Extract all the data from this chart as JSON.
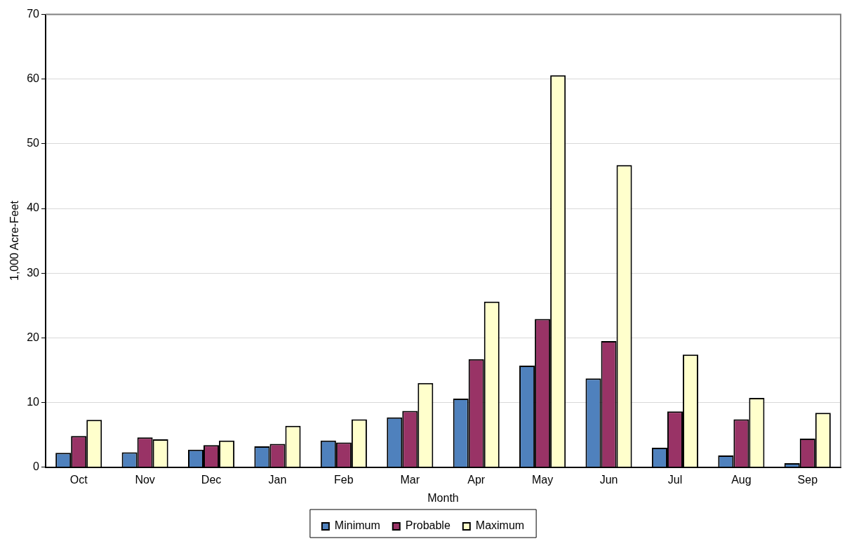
{
  "chart_data": {
    "type": "bar",
    "xlabel": "Month",
    "ylabel": "1,000 Acre-Feet",
    "categories": [
      "Oct",
      "Nov",
      "Dec",
      "Jan",
      "Feb",
      "Mar",
      "Apr",
      "May",
      "Jun",
      "Jul",
      "Aug",
      "Sep"
    ],
    "series": [
      {
        "name": "Minimum",
        "color": "#4f81bd",
        "values": [
          2.2,
          2.3,
          2.7,
          3.2,
          4.1,
          7.7,
          10.6,
          15.7,
          13.7,
          3.0,
          1.8,
          0.6
        ]
      },
      {
        "name": "Probable",
        "color": "#993366",
        "values": [
          4.8,
          4.6,
          3.4,
          3.6,
          3.8,
          8.7,
          16.7,
          22.9,
          19.5,
          8.6,
          7.4,
          4.4
        ]
      },
      {
        "name": "Maximum",
        "color": "#ffffcc",
        "values": [
          7.3,
          4.3,
          4.1,
          6.4,
          7.4,
          13.0,
          25.6,
          60.6,
          46.7,
          17.4,
          10.7,
          8.4
        ]
      }
    ],
    "ylim": [
      0,
      70
    ],
    "yticks": [
      0,
      10,
      20,
      30,
      40,
      50,
      60,
      70
    ],
    "grid": "y",
    "legend": "bottom"
  }
}
